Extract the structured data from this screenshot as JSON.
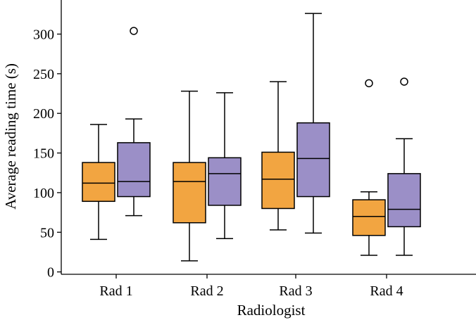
{
  "chart_data": {
    "type": "boxplot",
    "xlabel": "Radiologist",
    "ylabel": "Average reading time (s)",
    "categories": [
      "Rad 1",
      "Rad 2",
      "Rad 3",
      "Rad 4"
    ],
    "ylim": [
      -3,
      343
    ],
    "yticks": [
      0,
      50,
      100,
      150,
      200,
      250,
      300
    ],
    "grid": false,
    "series": [
      {
        "color": "#F2A541",
        "boxes": [
          {
            "whisker_low": 41,
            "q1": 89,
            "median": 112,
            "q3": 138,
            "whisker_high": 186,
            "outliers": []
          },
          {
            "whisker_low": 14,
            "q1": 62,
            "median": 114,
            "q3": 138,
            "whisker_high": 228,
            "outliers": []
          },
          {
            "whisker_low": 53,
            "q1": 80,
            "median": 117,
            "q3": 151,
            "whisker_high": 240,
            "outliers": []
          },
          {
            "whisker_low": 21,
            "q1": 46,
            "median": 70,
            "q3": 91,
            "whisker_high": 101,
            "outliers": [
              238
            ]
          }
        ]
      },
      {
        "color": "#9B8FC7",
        "boxes": [
          {
            "whisker_low": 71,
            "q1": 95,
            "median": 114,
            "q3": 163,
            "whisker_high": 193,
            "outliers": [
              304
            ]
          },
          {
            "whisker_low": 42,
            "q1": 84,
            "median": 124,
            "q3": 144,
            "whisker_high": 226,
            "outliers": []
          },
          {
            "whisker_low": 49,
            "q1": 95,
            "median": 143,
            "q3": 188,
            "whisker_high": 326,
            "outliers": []
          },
          {
            "whisker_low": 21,
            "q1": 57,
            "median": 79,
            "q3": 124,
            "whisker_high": 168,
            "outliers": [
              240
            ]
          }
        ]
      }
    ]
  }
}
